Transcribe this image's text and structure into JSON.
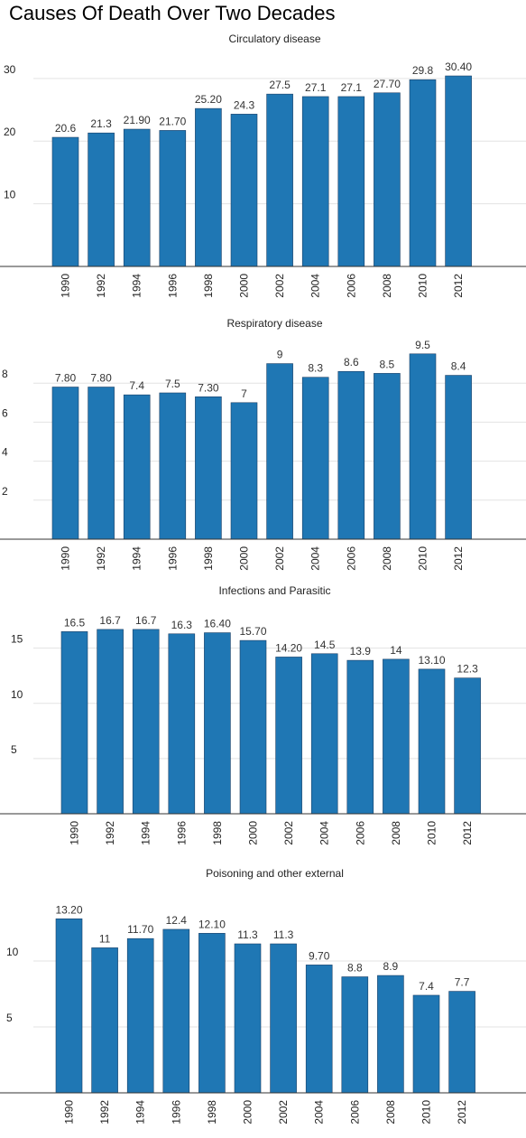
{
  "page_title": "Causes Of Death Over Two Decades",
  "bar_color": "#1f77b4",
  "chart_data": [
    {
      "type": "bar",
      "title": "Circulatory disease",
      "categories": [
        "1990",
        "1992",
        "1994",
        "1996",
        "1998",
        "2000",
        "2002",
        "2004",
        "2006",
        "2008",
        "2010",
        "2012"
      ],
      "values": [
        20.6,
        21.3,
        21.9,
        21.7,
        25.2,
        24.3,
        27.5,
        27.1,
        27.1,
        27.7,
        29.8,
        30.4
      ],
      "value_labels": [
        "20.6",
        "21.3",
        "21.90",
        "21.70",
        "25.20",
        "24.3",
        "27.5",
        "27.1",
        "27.1",
        "27.70",
        "29.8",
        "30.40"
      ],
      "yticks": [
        "10",
        "20",
        "30"
      ],
      "ylim": [
        0,
        33
      ],
      "grid": true
    },
    {
      "type": "bar",
      "title": "Respiratory disease",
      "categories": [
        "1990",
        "1992",
        "1994",
        "1996",
        "1998",
        "2000",
        "2002",
        "2004",
        "2006",
        "2008",
        "2010",
        "2012"
      ],
      "values": [
        7.8,
        7.8,
        7.4,
        7.5,
        7.3,
        7.0,
        9.0,
        8.3,
        8.6,
        8.5,
        9.5,
        8.4
      ],
      "value_labels": [
        "7.80",
        "7.80",
        "7.4",
        "7.5",
        "7.30",
        "7",
        "9",
        "8.3",
        "8.6",
        "8.5",
        "9.5",
        "8.4"
      ],
      "yticks": [
        "2",
        "4",
        "6",
        "8"
      ],
      "ylim": [
        0,
        10
      ],
      "grid": true
    },
    {
      "type": "bar",
      "title": "Infections and Parasitic",
      "categories": [
        "1990",
        "1992",
        "1994",
        "1996",
        "1998",
        "2000",
        "2002",
        "2004",
        "2006",
        "2008",
        "2010",
        "2012"
      ],
      "values": [
        16.5,
        16.7,
        16.7,
        16.3,
        16.4,
        15.7,
        14.2,
        14.5,
        13.9,
        14.0,
        13.1,
        12.3
      ],
      "value_labels": [
        "16.5",
        "16.7",
        "16.7",
        "16.3",
        "16.40",
        "15.70",
        "14.20",
        "14.5",
        "13.9",
        "14",
        "13.10",
        "12.3"
      ],
      "yticks": [
        "5",
        "10",
        "15"
      ],
      "ylim": [
        0,
        18
      ],
      "grid": true
    },
    {
      "type": "bar",
      "title": "Poisoning and other external",
      "categories": [
        "1990",
        "1992",
        "1994",
        "1996",
        "1998",
        "2000",
        "2002",
        "2004",
        "2006",
        "2008",
        "2010",
        "2012"
      ],
      "values": [
        13.2,
        11.0,
        11.7,
        12.4,
        12.1,
        11.3,
        11.3,
        9.7,
        8.8,
        8.9,
        7.4,
        7.7
      ],
      "value_labels": [
        "13.20",
        "11",
        "11.70",
        "12.4",
        "12.10",
        "11.3",
        "11.3",
        "9.70",
        "8.8",
        "8.9",
        "7.4",
        "7.7"
      ],
      "yticks": [
        "5",
        "10"
      ],
      "ylim": [
        0,
        15
      ],
      "grid": true
    }
  ]
}
